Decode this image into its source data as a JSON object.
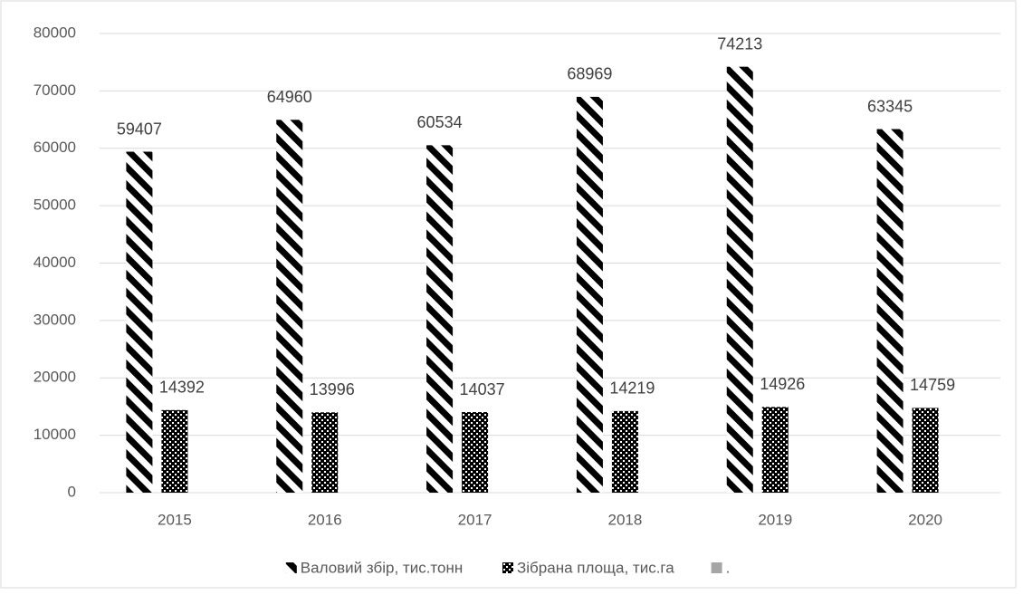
{
  "chart_data": {
    "type": "bar",
    "categories": [
      "2015",
      "2016",
      "2017",
      "2018",
      "2019",
      "2020"
    ],
    "series": [
      {
        "name": "Валовий збір, тис.тонн",
        "color": "#000000",
        "pattern": "diagonal",
        "values": [
          59407,
          64960,
          60534,
          68969,
          74213,
          63345
        ]
      },
      {
        "name": "Зібрана площа, тис.га",
        "color": "#000000",
        "pattern": "checker",
        "values": [
          14392,
          13996,
          14037,
          14219,
          14926,
          14759
        ]
      },
      {
        "name": ".",
        "color": "#a5a5a5",
        "pattern": "solid",
        "values": [
          null,
          null,
          null,
          null,
          null,
          null
        ]
      }
    ],
    "ylim": [
      0,
      80000
    ],
    "yticks": [
      0,
      10000,
      20000,
      30000,
      40000,
      50000,
      60000,
      70000,
      80000
    ],
    "grid": true,
    "legend": "bottom",
    "data_labels": true
  }
}
